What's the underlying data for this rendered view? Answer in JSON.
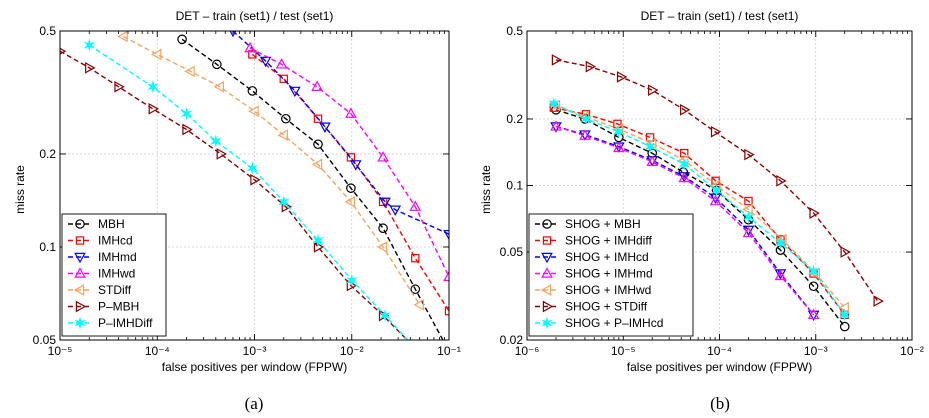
{
  "figure": {
    "panels": [
      {
        "title": "DET – train (set1) / test (set1)",
        "caption": "(a)",
        "legend_position": "lower-left"
      },
      {
        "title": "DET – train (set1) / test (set1)",
        "caption": "(b)",
        "legend_position": "lower-left"
      }
    ]
  },
  "chart_data": [
    {
      "type": "line",
      "title": "DET – train (set1) / test (set1)",
      "xlabel": "false positives per window (FPPW)",
      "ylabel": "miss rate",
      "x_scale": "log",
      "y_scale": "log",
      "xlim": [
        1e-05,
        0.1
      ],
      "ylim": [
        0.05,
        0.5
      ],
      "grid": true,
      "x_ticks": [
        1e-05,
        0.0001,
        0.001,
        0.01,
        0.1
      ],
      "x_tick_labels": [
        "10⁻⁵",
        "10⁻⁴",
        "10⁻³",
        "10⁻²",
        "10⁻¹"
      ],
      "y_ticks": [
        0.05,
        0.1,
        0.2,
        0.5
      ],
      "y_tick_labels": [
        "0.05",
        "0.1",
        "0.2",
        "0.5"
      ],
      "series": [
        {
          "name": "MBH",
          "color": "#000000",
          "marker": "circle",
          "x": [
            0.00018,
            0.00041,
            0.00095,
            0.0021,
            0.0045,
            0.0098,
            0.021,
            0.045,
            0.1
          ],
          "y": [
            0.47,
            0.39,
            0.32,
            0.26,
            0.215,
            0.155,
            0.115,
            0.073,
            0.046
          ]
        },
        {
          "name": "IMHcd",
          "color": "#ff0000",
          "marker": "square",
          "x": [
            0.00095,
            0.002,
            0.0045,
            0.0098,
            0.021,
            0.045,
            0.1
          ],
          "y": [
            0.42,
            0.35,
            0.26,
            0.195,
            0.14,
            0.092,
            0.062
          ]
        },
        {
          "name": "IMHmd",
          "color": "#0000ff",
          "marker": "triangle-down",
          "x": [
            0.0006,
            0.0013,
            0.0026,
            0.0053,
            0.011,
            0.022,
            0.028,
            0.1
          ],
          "y": [
            0.5,
            0.4,
            0.32,
            0.245,
            0.185,
            0.14,
            0.132,
            0.11
          ]
        },
        {
          "name": "IMHwd",
          "color": "#ff00ff",
          "marker": "triangle-up",
          "x": [
            0.0009,
            0.0019,
            0.0044,
            0.0098,
            0.021,
            0.045,
            0.1
          ],
          "y": [
            0.44,
            0.39,
            0.33,
            0.27,
            0.195,
            0.135,
            0.08
          ]
        },
        {
          "name": "STDiff",
          "color": "#f4a460",
          "marker": "triangle-left",
          "x": [
            4.5e-05,
            0.0001,
            0.00022,
            0.00044,
            0.001,
            0.002,
            0.0045,
            0.0098,
            0.021,
            0.05
          ],
          "y": [
            0.48,
            0.42,
            0.37,
            0.33,
            0.275,
            0.23,
            0.185,
            0.14,
            0.1,
            0.065
          ]
        },
        {
          "name": "P–MBH",
          "color": "#8b0000",
          "marker": "triangle-right",
          "x": [
            1e-05,
            2e-05,
            4e-05,
            9e-05,
            0.0002,
            0.00045,
            0.001,
            0.0021,
            0.0045,
            0.0098,
            0.021,
            0.045
          ],
          "y": [
            0.43,
            0.38,
            0.33,
            0.28,
            0.24,
            0.2,
            0.165,
            0.135,
            0.1,
            0.075,
            0.06,
            0.047
          ]
        },
        {
          "name": "P–IMHDiff",
          "color": "#00ffff",
          "marker": "star",
          "x": [
            2e-05,
            9e-05,
            0.0002,
            0.0004,
            0.00095,
            0.002,
            0.0045,
            0.01,
            0.022,
            0.045
          ],
          "y": [
            0.45,
            0.33,
            0.27,
            0.22,
            0.18,
            0.14,
            0.105,
            0.078,
            0.06,
            0.047
          ]
        }
      ]
    },
    {
      "type": "line",
      "title": "DET – train (set1) / test (set1)",
      "xlabel": "false positives per window (FPPW)",
      "ylabel": "miss rate",
      "x_scale": "log",
      "y_scale": "log",
      "xlim": [
        1e-06,
        0.01
      ],
      "ylim": [
        0.02,
        0.5
      ],
      "grid": true,
      "x_ticks": [
        1e-06,
        1e-05,
        0.0001,
        0.001,
        0.01
      ],
      "x_tick_labels": [
        "10⁻⁶",
        "10⁻⁵",
        "10⁻⁴",
        "10⁻³",
        "10⁻²"
      ],
      "y_ticks": [
        0.02,
        0.05,
        0.1,
        0.2,
        0.5
      ],
      "y_tick_labels": [
        "0.02",
        "0.05",
        "0.1",
        "0.2",
        "0.5"
      ],
      "series": [
        {
          "name": "SHOG + MBH",
          "color": "#000000",
          "marker": "circle",
          "x": [
            2e-06,
            4e-06,
            9e-06,
            2e-05,
            4.2e-05,
            9.3e-05,
            0.0002,
            0.00043,
            0.00095,
            0.002
          ],
          "y": [
            0.22,
            0.2,
            0.165,
            0.14,
            0.115,
            0.095,
            0.07,
            0.051,
            0.035,
            0.023
          ]
        },
        {
          "name": "SHOG + IMHdiff",
          "color": "#ff0000",
          "marker": "square",
          "x": [
            1.9e-06,
            4.1e-06,
            8.7e-06,
            1.9e-05,
            4.3e-05,
            9.1e-05,
            0.0002,
            0.00043,
            0.00095,
            0.002
          ],
          "y": [
            0.225,
            0.21,
            0.19,
            0.165,
            0.14,
            0.105,
            0.085,
            0.057,
            0.04,
            0.026
          ]
        },
        {
          "name": "SHOG + IMHcd",
          "color": "#0000ff",
          "marker": "triangle-down",
          "x": [
            2e-06,
            4e-06,
            9e-06,
            2e-05,
            4.3e-05,
            9.1e-05,
            0.0002,
            0.00043,
            0.00095
          ],
          "y": [
            0.185,
            0.17,
            0.15,
            0.13,
            0.11,
            0.088,
            0.063,
            0.04,
            0.026
          ]
        },
        {
          "name": "SHOG + IMHmd",
          "color": "#ff00ff",
          "marker": "triangle-up",
          "x": [
            2e-06,
            4e-06,
            9e-06,
            2e-05,
            4.3e-05,
            9.1e-05,
            0.0002,
            0.00043,
            0.00095
          ],
          "y": [
            0.185,
            0.168,
            0.148,
            0.128,
            0.108,
            0.085,
            0.061,
            0.039,
            0.026
          ]
        },
        {
          "name": "SHOG + IMHwd",
          "color": "#f4a460",
          "marker": "triangle-left",
          "x": [
            2e-06,
            4e-06,
            9e-06,
            2e-05,
            4.3e-05,
            9.3e-05,
            0.0002,
            0.00045,
            0.001,
            0.002
          ],
          "y": [
            0.23,
            0.205,
            0.18,
            0.155,
            0.13,
            0.1,
            0.078,
            0.057,
            0.04,
            0.028
          ]
        },
        {
          "name": "SHOG + STDiff",
          "color": "#8b0000",
          "marker": "triangle-right",
          "x": [
            2e-06,
            4.5e-06,
            9.5e-06,
            2e-05,
            4.3e-05,
            9e-05,
            0.0002,
            0.00043,
            0.00095,
            0.002,
            0.0044
          ],
          "y": [
            0.37,
            0.345,
            0.31,
            0.27,
            0.22,
            0.175,
            0.138,
            0.105,
            0.075,
            0.05,
            0.03
          ]
        },
        {
          "name": "SHOG + P–IMHcd",
          "color": "#00ffff",
          "marker": "star",
          "x": [
            1.9e-06,
            4.1e-06,
            8.9e-06,
            1.9e-05,
            4.3e-05,
            9.3e-05,
            0.0002,
            0.00043,
            0.00095,
            0.002
          ],
          "y": [
            0.235,
            0.2,
            0.175,
            0.15,
            0.125,
            0.095,
            0.072,
            0.055,
            0.041,
            0.026
          ]
        }
      ]
    }
  ]
}
